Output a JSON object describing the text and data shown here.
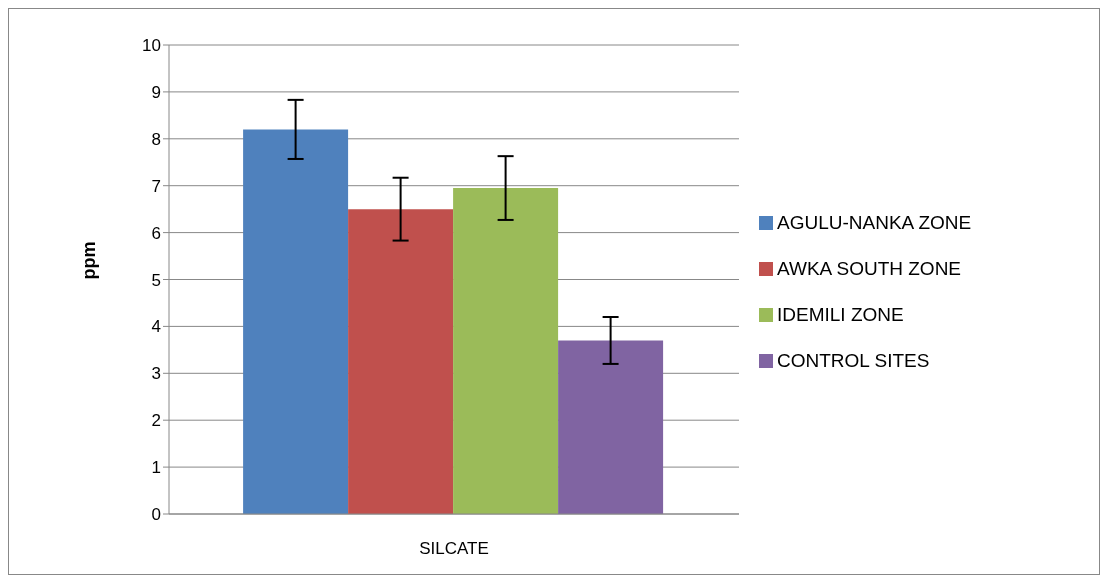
{
  "chart_data": {
    "type": "bar",
    "categories": [
      "SILCATE"
    ],
    "ylabel": "ppm",
    "series": [
      {
        "name": "AGULU-NANKA ZONE",
        "color": "#4f81bd",
        "values": [
          8.2
        ],
        "errors": [
          0.63
        ]
      },
      {
        "name": "AWKA SOUTH ZONE",
        "color": "#c0504d",
        "values": [
          6.5
        ],
        "errors": [
          0.67
        ]
      },
      {
        "name": "IDEMILI ZONE",
        "color": "#9bbb59",
        "values": [
          6.95
        ],
        "errors": [
          0.68
        ]
      },
      {
        "name": "CONTROL SITES",
        "color": "#8064a2",
        "values": [
          3.7
        ],
        "errors": [
          0.5
        ]
      }
    ],
    "ylim": [
      0,
      10
    ],
    "yticks": [
      0,
      1,
      2,
      3,
      4,
      5,
      6,
      7,
      8,
      9,
      10
    ],
    "grid": "y",
    "legend": "right"
  }
}
